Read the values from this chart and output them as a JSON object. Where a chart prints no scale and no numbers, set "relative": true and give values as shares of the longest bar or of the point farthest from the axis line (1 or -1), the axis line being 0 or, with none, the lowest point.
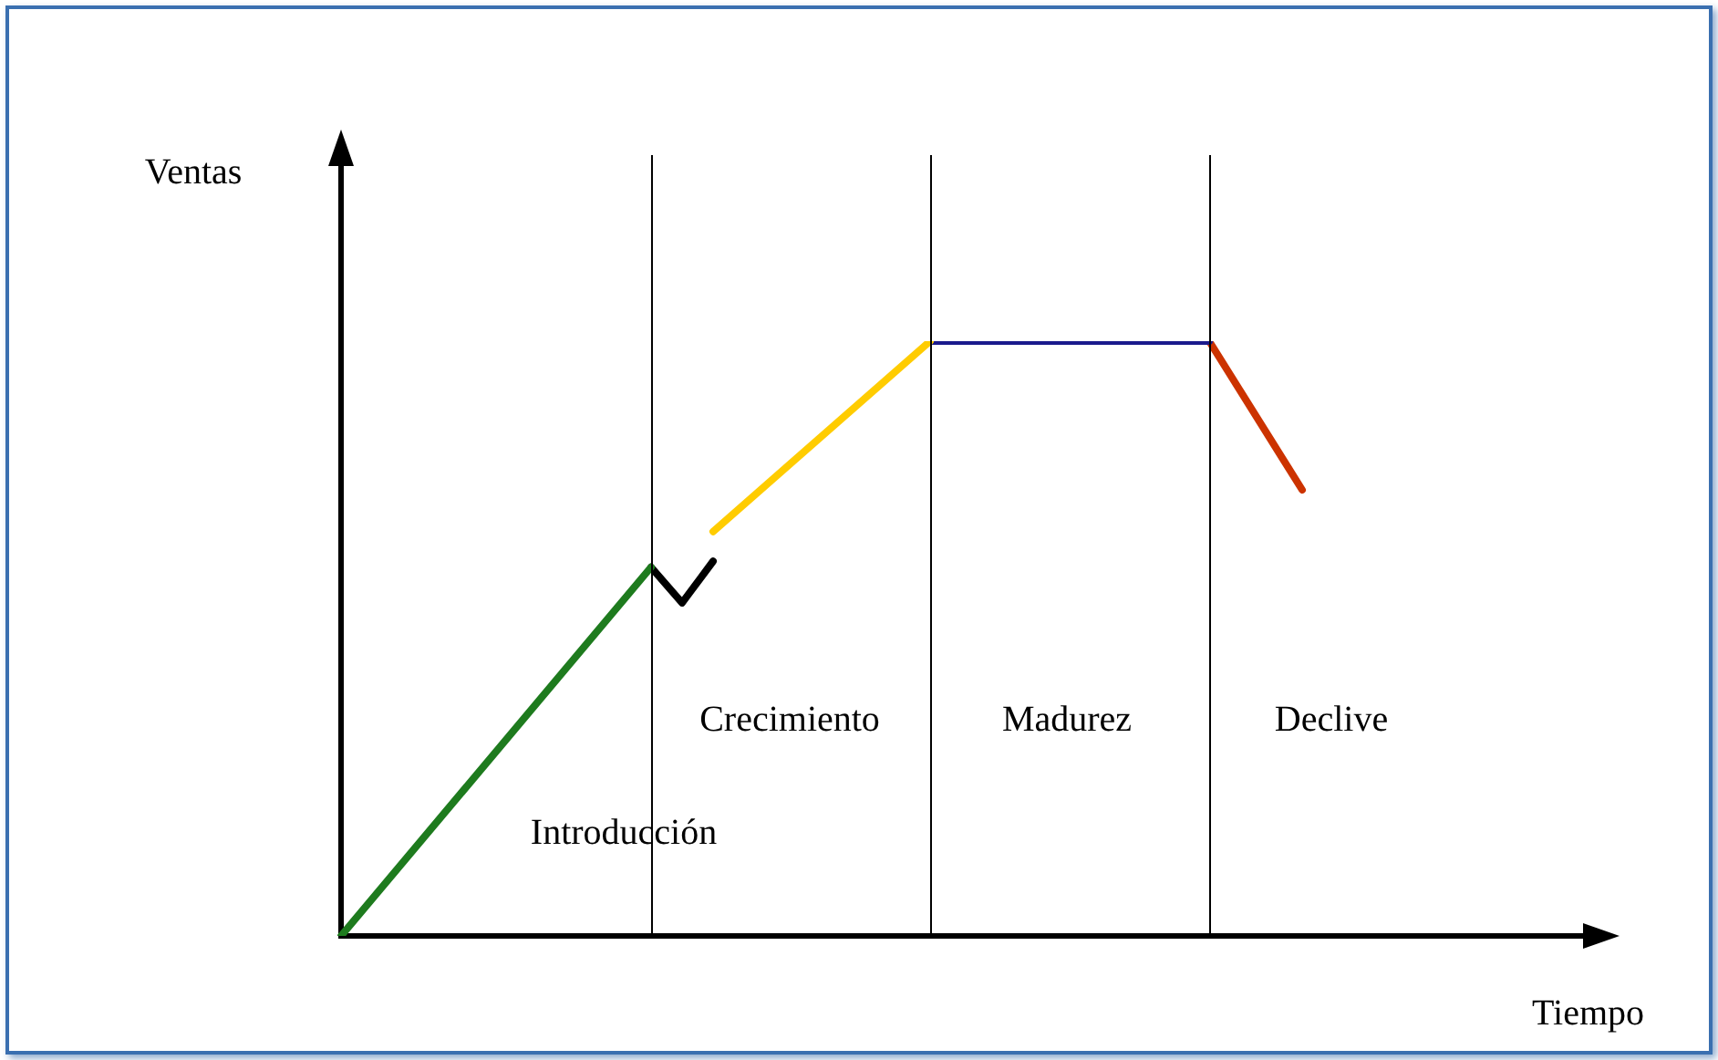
{
  "chart_data": {
    "type": "line",
    "relative": true,
    "xlabel": "Tiempo",
    "grid": false,
    "legend": false,
    "marker": "none",
    "line_style": "solid",
    "categories": [
      null,
      null,
      null,
      null,
      null,
      null,
      null,
      null,
      null,
      null,
      null,
      null,
      null,
      null,
      null,
      null,
      null,
      null,
      null,
      null,
      null,
      null,
      null,
      null,
      null,
      null,
      null,
      null,
      null,
      null,
      null,
      null,
      null,
      null,
      null,
      null,
      null,
      null,
      null,
      null,
      null
    ],
    "series": [
      {
        "color": "#1e7b1e",
        "values": [
          0,
          null,
          null,
          null,
          null,
          null,
          null,
          null,
          null,
          null,
          0.62,
          null,
          null,
          null,
          null,
          null,
          null,
          null,
          null,
          null,
          null,
          null,
          null,
          null,
          null,
          null,
          null,
          null,
          null,
          null,
          null,
          null,
          null,
          null,
          null,
          null,
          null,
          null,
          null,
          null,
          null
        ]
      },
      {
        "color": "#000000",
        "values": [
          null,
          null,
          null,
          null,
          null,
          null,
          null,
          null,
          null,
          null,
          0.62,
          0.56,
          0.63,
          null,
          null,
          null,
          null,
          null,
          null,
          null,
          null,
          null,
          null,
          null,
          null,
          null,
          null,
          null,
          null,
          null,
          null,
          null,
          null,
          null,
          null,
          null,
          null,
          null,
          null,
          null,
          null
        ]
      },
      {
        "color": "#ffcc00",
        "values": [
          null,
          null,
          null,
          null,
          null,
          null,
          null,
          null,
          null,
          null,
          null,
          null,
          0.68,
          null,
          null,
          null,
          null,
          null,
          null,
          1,
          null,
          null,
          null,
          null,
          null,
          null,
          null,
          null,
          null,
          null,
          null,
          null,
          null,
          null,
          null,
          null,
          null,
          null,
          null,
          null,
          null
        ]
      },
      {
        "color": "#1a1a8c",
        "values": [
          null,
          null,
          null,
          null,
          null,
          null,
          null,
          null,
          null,
          null,
          null,
          null,
          null,
          null,
          null,
          null,
          null,
          null,
          null,
          1,
          null,
          null,
          null,
          null,
          null,
          null,
          null,
          null,
          1,
          null,
          null,
          null,
          null,
          null,
          null,
          null,
          null,
          null,
          null,
          null,
          null
        ]
      },
      {
        "color": "#cc3300",
        "values": [
          null,
          null,
          null,
          null,
          null,
          null,
          null,
          null,
          null,
          null,
          null,
          null,
          null,
          null,
          null,
          null,
          null,
          null,
          null,
          null,
          null,
          null,
          null,
          null,
          null,
          null,
          null,
          null,
          1,
          null,
          null,
          0.75,
          null,
          null,
          null,
          null,
          null,
          null,
          null,
          null,
          null
        ]
      }
    ],
    "annotations": [
      "Ventas",
      "Introducción",
      "Crecimiento",
      "Madurez",
      "Declive"
    ]
  }
}
